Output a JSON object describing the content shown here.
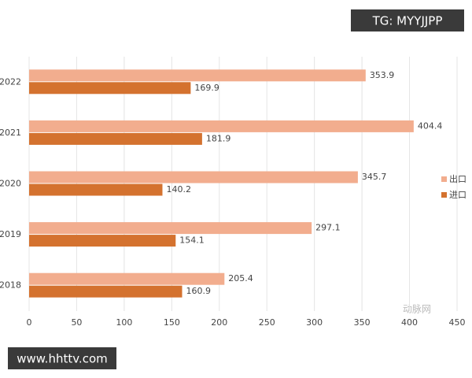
{
  "chart_data": {
    "type": "hbar",
    "categories": [
      "2022",
      "2021",
      "2020",
      "2019",
      "2018"
    ],
    "series": [
      {
        "name": "出口",
        "color": "#f2ad8e",
        "values": [
          353.9,
          404.4,
          345.7,
          297.1,
          205.4
        ]
      },
      {
        "name": "进口",
        "color": "#d4722f",
        "values": [
          169.9,
          181.9,
          140.2,
          154.1,
          160.9
        ]
      }
    ],
    "xlim": [
      0,
      450
    ],
    "xticks": [
      0,
      50,
      100,
      150,
      200,
      250,
      300,
      350,
      400,
      450
    ],
    "grid": true,
    "legend": "right"
  },
  "watermarks": [
    "TG: MYYJJPP",
    "www.hhttv.com",
    "动脉网"
  ]
}
